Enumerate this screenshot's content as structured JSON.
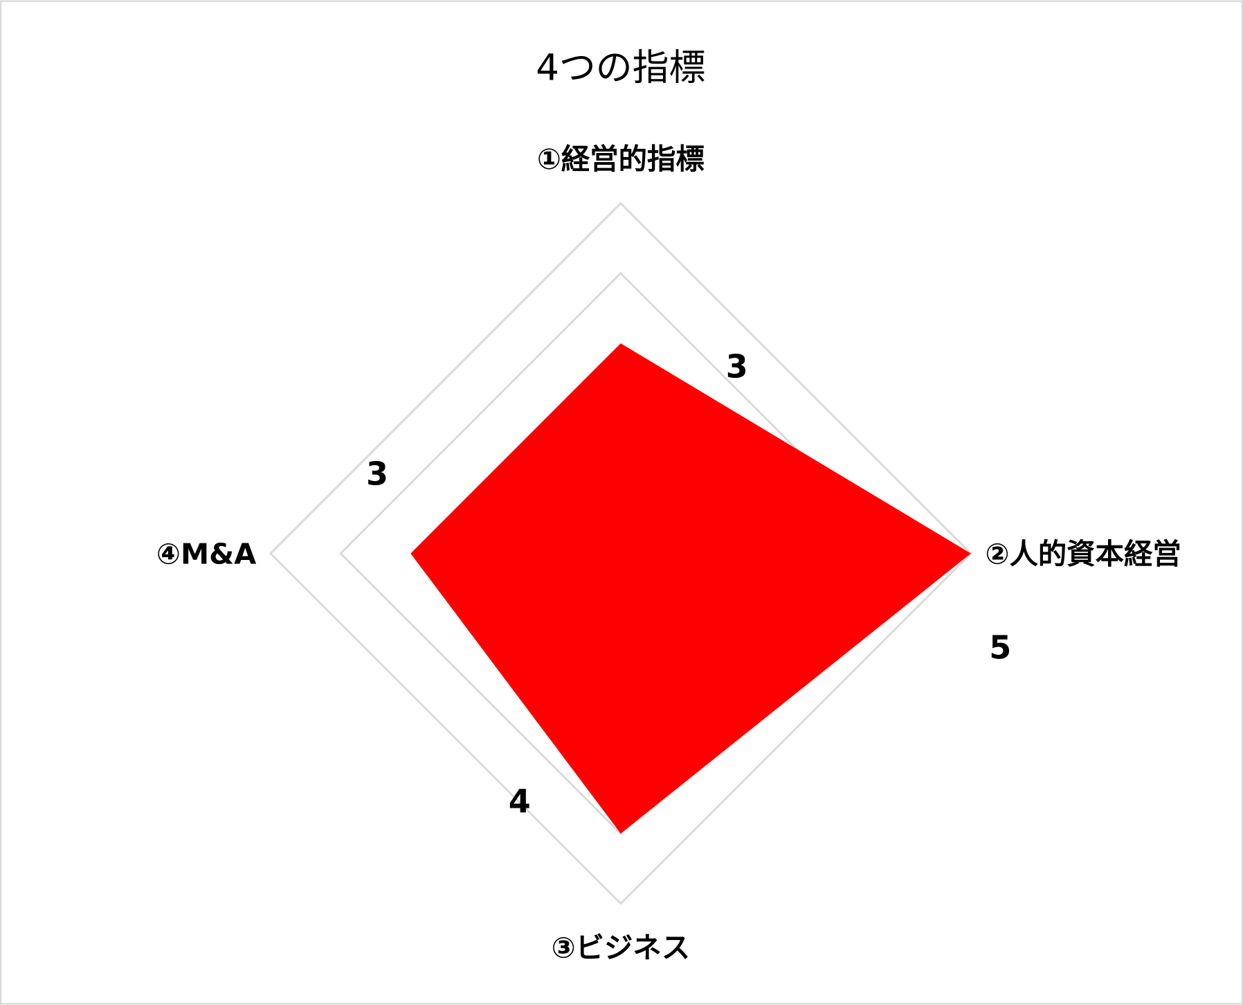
{
  "chart_data": {
    "type": "radar",
    "title": "4つの指標",
    "categories": [
      "①経営的指標",
      "②人的資本経営",
      "③ビジネス",
      "④M&A"
    ],
    "series": [
      {
        "values": [
          3,
          5,
          4,
          3
        ],
        "color": "#FF0000"
      }
    ],
    "range": [
      0,
      5
    ],
    "gridlines": [
      4,
      5
    ],
    "grid_color": "#D9D9D9",
    "data_labels": [
      "3",
      "5",
      "4",
      "3"
    ],
    "legend": "none"
  }
}
